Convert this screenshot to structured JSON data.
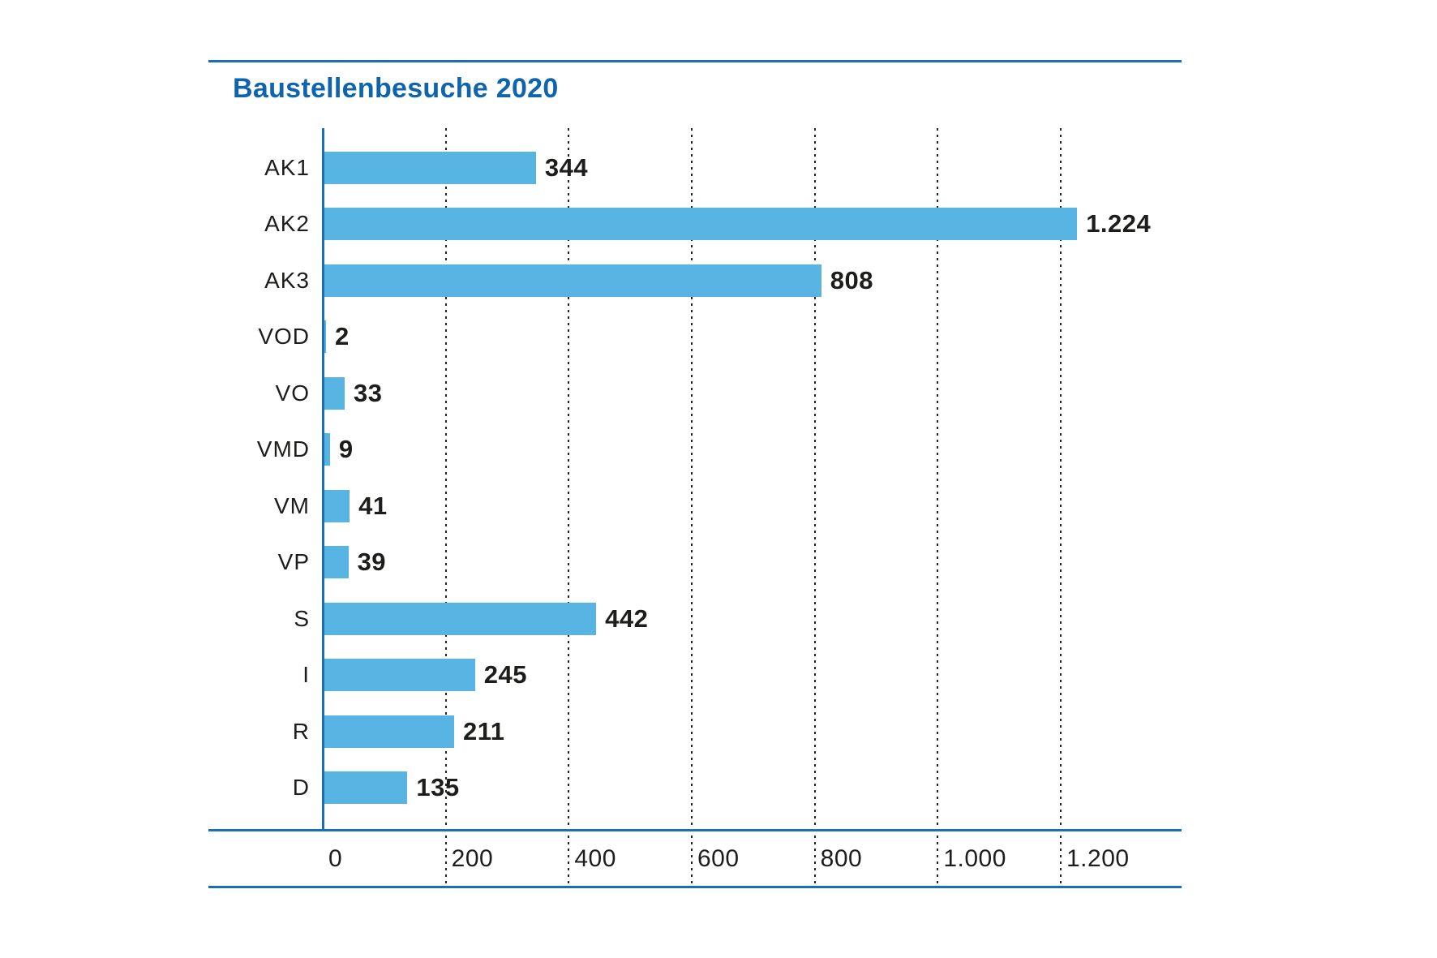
{
  "title": "Baustellenbesuche 2020",
  "colors": {
    "bar": "#58b4e3",
    "rule": "#1a6fb5",
    "title": "#0f65ad",
    "text": "#1d1d1b",
    "grid": "#262626",
    "background": "#ffffff"
  },
  "chart_data": {
    "type": "bar",
    "orientation": "horizontal",
    "title": "Baustellenbesuche 2020",
    "categories": [
      "AK1",
      "AK2",
      "AK3",
      "VOD",
      "VO",
      "VMD",
      "VM",
      "VP",
      "S",
      "I",
      "R",
      "D"
    ],
    "values": [
      344,
      1224,
      808,
      2,
      33,
      9,
      41,
      39,
      442,
      245,
      211,
      135
    ],
    "value_labels": [
      "344",
      "1.224",
      "808",
      "2",
      "33",
      "9",
      "41",
      "39",
      "442",
      "245",
      "211",
      "135"
    ],
    "x_ticks": [
      0,
      200,
      400,
      600,
      800,
      1000,
      1200
    ],
    "x_tick_labels": [
      "0",
      "200",
      "400",
      "600",
      "800",
      "1.000",
      "1.200"
    ],
    "xlim": [
      0,
      1200
    ],
    "xlabel": "",
    "ylabel": "",
    "grid": "vertical-dotted",
    "legend": "none",
    "number_format": "de-DE"
  }
}
